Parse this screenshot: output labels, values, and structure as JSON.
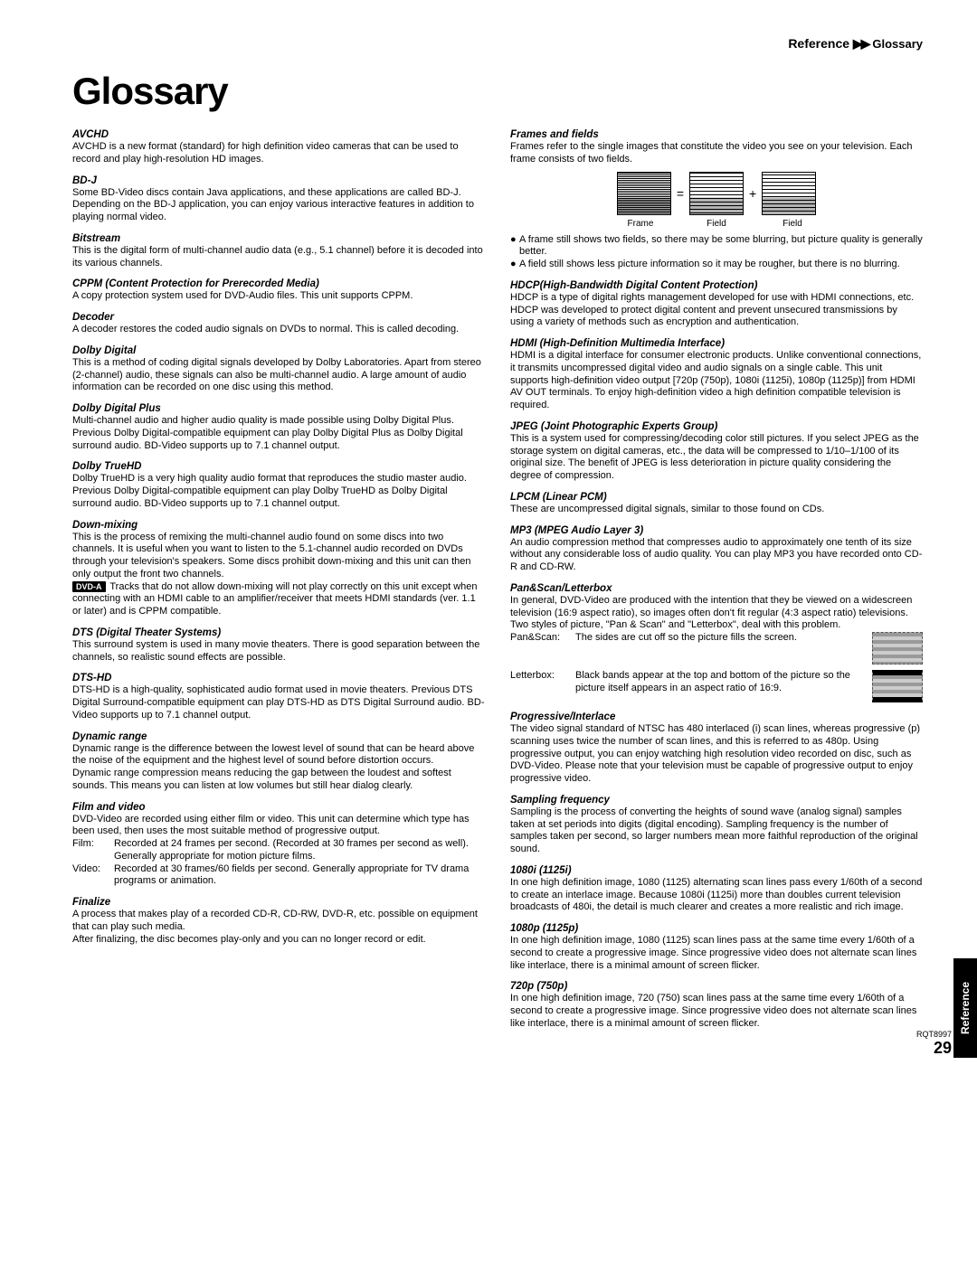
{
  "breadcrumb": {
    "ref": "Reference",
    "arrows": "▶▶",
    "section": "Glossary"
  },
  "title": "Glossary",
  "sideTab": "Reference",
  "docCode": "RQT8997",
  "pageNumber": "29",
  "left": [
    {
      "term": "AVCHD",
      "def": "AVCHD is a new format (standard) for high definition video cameras that can be used to record and play high-resolution HD images."
    },
    {
      "term": "BD-J",
      "def": "Some BD-Video discs contain Java applications, and these applications are called BD-J. Depending on the BD-J application, you can enjoy various interactive features in addition to playing normal video."
    },
    {
      "term": "Bitstream",
      "def": "This is the digital form of multi-channel audio data (e.g., 5.1 channel) before it is decoded into its various channels."
    },
    {
      "term": "CPPM (Content Protection for Prerecorded Media)",
      "def": "A copy protection system used for DVD-Audio files. This unit supports CPPM."
    },
    {
      "term": "Decoder",
      "def": "A decoder restores the coded audio signals on DVDs to normal. This is called decoding."
    },
    {
      "term": "Dolby Digital",
      "def": "This is a method of coding digital signals developed by Dolby Laboratories. Apart from stereo (2-channel) audio, these signals can also be multi-channel audio. A large amount of audio information can be recorded on one disc using this method."
    },
    {
      "term": "Dolby Digital Plus",
      "def": "Multi-channel audio and higher audio quality is made possible using Dolby Digital Plus. Previous Dolby Digital-compatible equipment can play Dolby Digital Plus as Dolby Digital surround audio. BD-Video supports up to 7.1 channel output."
    },
    {
      "term": "Dolby TrueHD",
      "def": "Dolby TrueHD is a very high quality audio format that reproduces the studio master audio. Previous Dolby Digital-compatible equipment can play Dolby TrueHD as Dolby Digital surround audio. BD-Video supports up to 7.1 channel output."
    },
    {
      "term": "Down-mixing",
      "def": "This is the process of remixing the multi-channel audio found on some discs into two channels. It is useful when you want to listen to the 5.1-channel audio recorded on DVDs through your television's speakers. Some discs prohibit down-mixing and this unit can then only output the front two channels.",
      "badge": "DVD-A",
      "def2": "Tracks that do not allow down-mixing will not play correctly on this unit except when connecting with an HDMI cable to an amplifier/receiver that meets HDMI standards (ver. 1.1 or later) and is CPPM compatible."
    },
    {
      "term": "DTS (Digital Theater Systems)",
      "def": "This surround system is used in many movie theaters. There is good separation between the channels, so realistic sound effects are possible."
    },
    {
      "term": "DTS-HD",
      "def": "DTS-HD is a high-quality, sophisticated audio format used in movie theaters. Previous DTS Digital Surround-compatible equipment can play DTS-HD as DTS Digital Surround audio. BD-Video supports up to 7.1 channel output."
    },
    {
      "term": "Dynamic range",
      "def": "Dynamic range is the difference between the lowest level of sound that can be heard above the noise of the equipment and the highest level of sound before distortion occurs.\nDynamic range compression means reducing the gap between the loudest and softest sounds. This means you can listen at low volumes but still hear dialog clearly."
    },
    {
      "term": "Film and video",
      "def": "DVD-Video are recorded using either film or video. This unit can determine which type has been used, then uses the most suitable method of progressive output.",
      "rows": [
        {
          "k": "Film:",
          "v": "Recorded at 24 frames per second. (Recorded at 30 frames per second as well). Generally appropriate for motion picture films."
        },
        {
          "k": "Video:",
          "v": "Recorded at 30 frames/60 fields per second. Generally appropriate for TV drama programs or animation."
        }
      ]
    },
    {
      "term": "Finalize",
      "def": "A process that makes play of a recorded CD-R, CD-RW, DVD-R, etc. possible on equipment that can play such media.\nAfter finalizing, the disc becomes play-only and you can no longer record or edit."
    }
  ],
  "right": [
    {
      "term": "Frames and fields",
      "def": "Frames refer to the single images that constitute the video you see on your television. Each frame consists of two fields.",
      "frameLabels": [
        "Frame",
        "Field",
        "Field"
      ],
      "bullets": [
        "A frame still shows two fields, so there may be some blurring, but picture quality is generally better.",
        "A field still shows less picture information so it may be rougher, but there is no blurring."
      ]
    },
    {
      "term": "HDCP(High-Bandwidth Digital Content Protection)",
      "def": "HDCP is a type of digital rights management developed for use with HDMI connections, etc. HDCP was developed to protect digital content and prevent unsecured transmissions by using a variety of methods such as encryption and authentication."
    },
    {
      "term": "HDMI (High-Definition Multimedia Interface)",
      "def": "HDMI is a digital interface for consumer electronic products. Unlike conventional connections, it transmits uncompressed digital video and audio signals on a single cable. This unit supports high-definition video output [720p (750p), 1080i (1125i), 1080p (1125p)] from HDMI AV OUT terminals. To enjoy high-definition video a high definition compatible television is required."
    },
    {
      "term": "JPEG (Joint Photographic Experts Group)",
      "def": "This is a system used for compressing/decoding color still pictures. If you select JPEG as the storage system on digital cameras, etc., the data will be compressed to 1/10–1/100 of its original size. The benefit of JPEG is less deterioration in picture quality considering the degree of compression."
    },
    {
      "term": "LPCM (Linear PCM)",
      "def": "These are uncompressed digital signals, similar to those found on CDs."
    },
    {
      "term": "MP3 (MPEG Audio Layer 3)",
      "def": "An audio compression method that compresses audio to approximately one tenth of its size without any considerable loss of audio quality. You can play MP3 you have recorded onto CD-R and CD-RW."
    },
    {
      "term": "Pan&Scan/Letterbox",
      "def": "In general, DVD-Video are produced with the intention that they be viewed on a widescreen television (16:9 aspect ratio), so images often don't fit regular (4:3 aspect ratio) televisions. Two styles of picture, \"Pan & Scan\" and \"Letterbox\", deal with this problem.",
      "psRows": [
        {
          "k": "Pan&Scan:",
          "v": "The sides are cut off so the picture fills the screen.",
          "cls": "pan"
        },
        {
          "k": "Letterbox:",
          "v": "Black bands appear at the top and bottom of the picture so the picture itself appears in an aspect ratio of 16:9.",
          "cls": "letter"
        }
      ]
    },
    {
      "term": "Progressive/Interlace",
      "def": "The video signal standard of NTSC has 480 interlaced (i) scan lines, whereas progressive (p) scanning uses twice the number of scan lines, and this is referred to as 480p. Using progressive output, you can enjoy watching high resolution video recorded on disc, such as DVD-Video. Please note that your television must be capable of progressive output to enjoy progressive video."
    },
    {
      "term": "Sampling frequency",
      "def": "Sampling is the process of converting the heights of sound wave (analog signal) samples taken at set periods into digits (digital encoding). Sampling frequency is the number of samples taken per second, so larger numbers mean more faithful reproduction of the original sound."
    },
    {
      "term": "1080i (1125i)",
      "def": "In one high definition image, 1080 (1125) alternating scan lines pass every 1/60th of a second to create an interlace image. Because 1080i (1125i) more than doubles current television broadcasts of 480i, the detail is much clearer and creates a more realistic and rich image."
    },
    {
      "term": "1080p (1125p)",
      "def": "In one high definition image, 1080 (1125) scan lines pass at the same time every 1/60th of a second to create a progressive image. Since progressive video does not alternate scan lines like interlace, there is a minimal amount of screen flicker."
    },
    {
      "term": "720p (750p)",
      "def": "In one high definition image, 720 (750) scan lines pass at the same time every 1/60th of a second to create a progressive image. Since progressive video does not alternate scan lines like interlace, there is a minimal amount of screen flicker."
    }
  ]
}
